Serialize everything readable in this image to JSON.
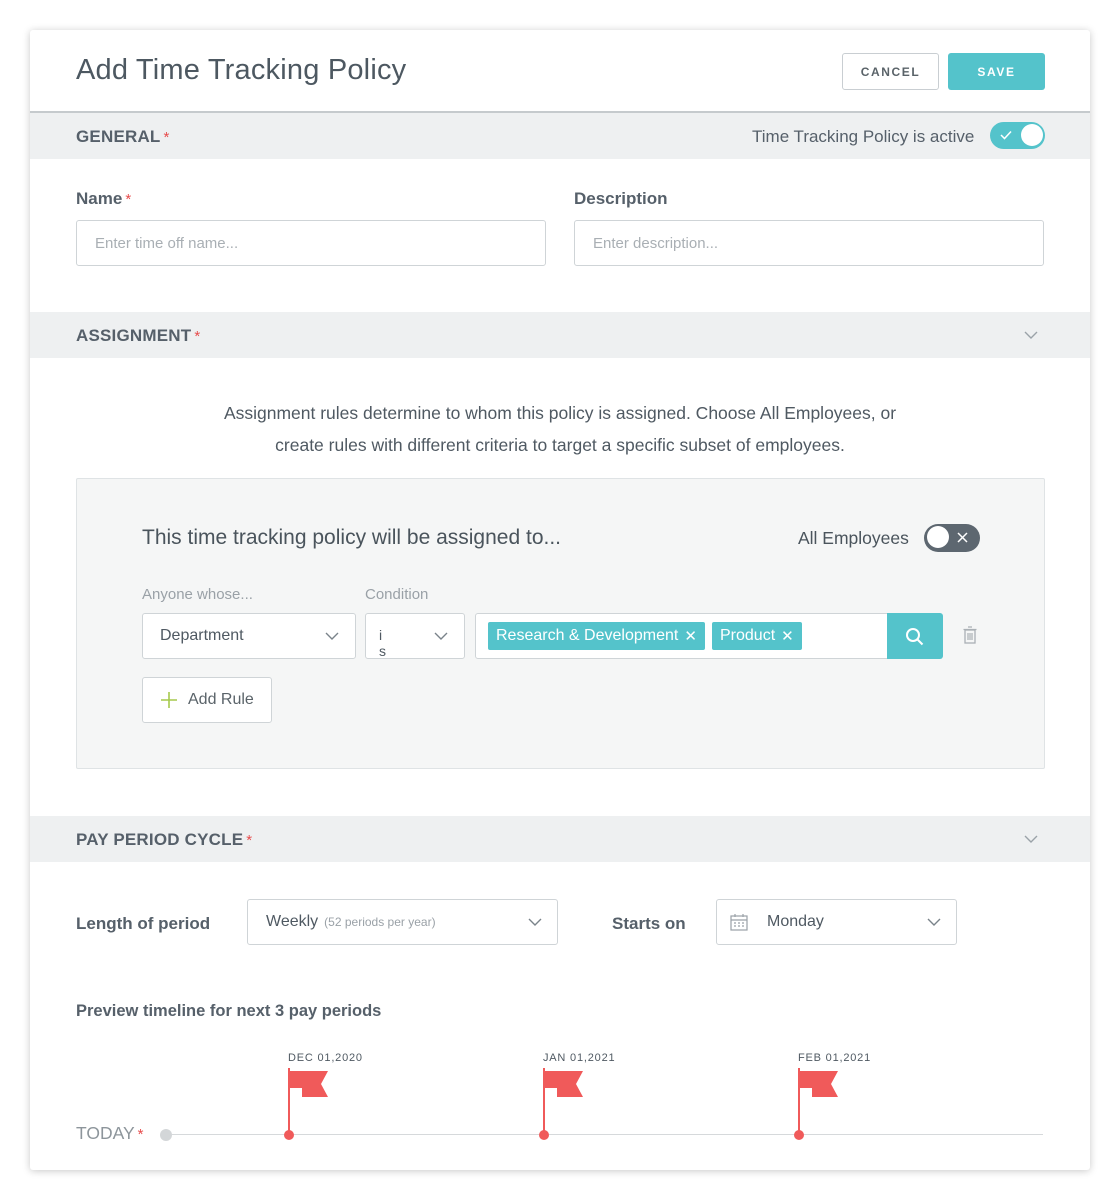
{
  "header": {
    "title": "Add Time Tracking Policy",
    "cancel_label": "CANCEL",
    "save_label": "SAVE"
  },
  "general": {
    "section_label": "GENERAL",
    "active_label": "Time Tracking Policy is active",
    "active": true,
    "name_label": "Name",
    "name_placeholder": "Enter time off name...",
    "description_label": "Description",
    "description_placeholder": "Enter description..."
  },
  "assignment": {
    "section_label": "ASSIGNMENT",
    "info_line1": "Assignment rules determine to whom this policy is assigned. Choose All Employees, or",
    "info_line2": "create rules with different criteria to target a specific subset of employees.",
    "box_title": "This time tracking policy will be assigned to...",
    "all_employees_label": "All Employees",
    "all_employees": false,
    "anyone_label": "Anyone whose...",
    "condition_label": "Condition",
    "rule": {
      "field": "Department",
      "condition": "is",
      "tags": [
        "Research & Development",
        "Product"
      ]
    },
    "add_rule_label": "Add Rule"
  },
  "pay_period": {
    "section_label": "PAY PERIOD CYCLE",
    "length_label": "Length of period",
    "length_value": "Weekly",
    "length_hint": "(52 periods per year)",
    "starts_label": "Starts on",
    "starts_value": "Monday",
    "preview_label": "Preview timeline for next 3 pay periods",
    "today_label": "TODAY",
    "dates": [
      "DEC 01,2020",
      "JAN 01,2021",
      "FEB 01,2021"
    ]
  },
  "colors": {
    "accent": "#54c3cb",
    "required": "#e74c4c",
    "flag": "#f05a5a",
    "toggle_off": "#5d6770"
  }
}
